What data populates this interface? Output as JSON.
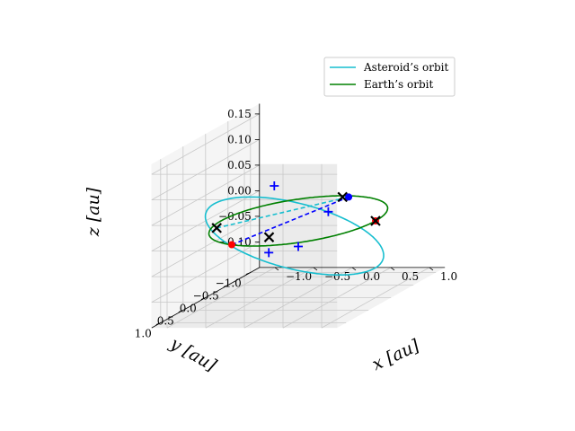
{
  "chart_data": {
    "type": "line",
    "projection": "3d",
    "title": "",
    "xlabel": "x [au]",
    "ylabel": "y [au]",
    "zlabel": "z [au]",
    "xlim": [
      -1.2,
      1.2
    ],
    "ylim": [
      -1.2,
      1.2
    ],
    "zlim": [
      -0.15,
      0.17
    ],
    "x_ticks": [
      -1.0,
      -0.5,
      0.0,
      0.5,
      1.0
    ],
    "x_tick_labels": [
      "−1.0",
      "−0.5",
      "0.0",
      "0.5",
      "1.0"
    ],
    "y_ticks": [
      -1.0,
      -0.5,
      0.0,
      0.5,
      1.0
    ],
    "y_tick_labels": [
      "−1.0",
      "−0.5",
      "0.0",
      "0.5",
      "1.0"
    ],
    "z_ticks": [
      -0.1,
      -0.05,
      0.0,
      0.05,
      0.1,
      0.15
    ],
    "z_tick_labels": [
      "−0.10",
      "−0.05",
      "0.00",
      "0.05",
      "0.10",
      "0.15"
    ],
    "grid": true,
    "legend_position": "top-right",
    "series": [
      {
        "name": "Asteroid's orbit",
        "legend_label": "Asteroid’s orbit",
        "color": "#17becf",
        "kind": "ellipse",
        "semi_major_axis": 1.0,
        "eccentricity": 0.1,
        "inclination_deg": 6,
        "center": [
          0.3,
          0.6,
          0.0
        ]
      },
      {
        "name": "Earth's orbit",
        "legend_label": "Earth’s orbit",
        "color": "#008000",
        "kind": "circle",
        "radius": 1.0,
        "center": [
          0.0,
          0.0,
          0.0
        ]
      }
    ],
    "markers": [
      {
        "name": "asteroid-position",
        "shape": "dot",
        "color": "#ff0000",
        "point": [
          -0.25,
          1.05,
          0.005
        ]
      },
      {
        "name": "asteroid-sample",
        "shape": "plus",
        "color": "#0000ff",
        "point": [
          0.3,
          1.05,
          0.12
        ]
      },
      {
        "name": "asteroid-sample",
        "shape": "plus",
        "color": "#0000ff",
        "point": [
          0.65,
          0.45,
          0.04
        ]
      },
      {
        "name": "asteroid-sample",
        "shape": "plus",
        "color": "#0000ff",
        "point": [
          -0.12,
          0.45,
          -0.04
        ]
      },
      {
        "name": "asteroid-sample",
        "shape": "plus",
        "color": "#0000ff",
        "point": [
          0.0,
          0.0,
          -0.05
        ]
      },
      {
        "name": "close-approach",
        "shape": "x",
        "color": "#000000",
        "point": [
          -0.3,
          1.3,
          0.05
        ]
      },
      {
        "name": "close-approach",
        "shape": "x",
        "color": "#000000",
        "point": [
          0.0,
          0.65,
          0.0
        ]
      },
      {
        "name": "close-approach",
        "shape": "x",
        "color": "#000000",
        "point": [
          0.02,
          -0.95,
          0.0
        ]
      },
      {
        "name": "earth-position",
        "shape": "dot",
        "color": "#0000ff",
        "point": [
          0.1,
          -0.95,
          0.0
        ]
      },
      {
        "name": "earth-position-far",
        "shape": "dot",
        "color": "#ff0000",
        "point": [
          1.0,
          0.0,
          0.0
        ]
      },
      {
        "name": "earth-position-far-x",
        "shape": "x",
        "color": "#000000",
        "point": [
          1.0,
          0.0,
          0.0
        ]
      }
    ],
    "connectors": [
      {
        "name": "cyan-dashed-connector",
        "color": "#17becf",
        "from": [
          -0.3,
          1.3,
          0.05
        ],
        "to": [
          0.1,
          -0.95,
          0.0
        ]
      },
      {
        "name": "blue-dashed-connector",
        "color": "#0000ff",
        "from": [
          -0.25,
          1.05,
          0.005
        ],
        "to": [
          0.1,
          -0.95,
          0.0
        ]
      }
    ]
  }
}
